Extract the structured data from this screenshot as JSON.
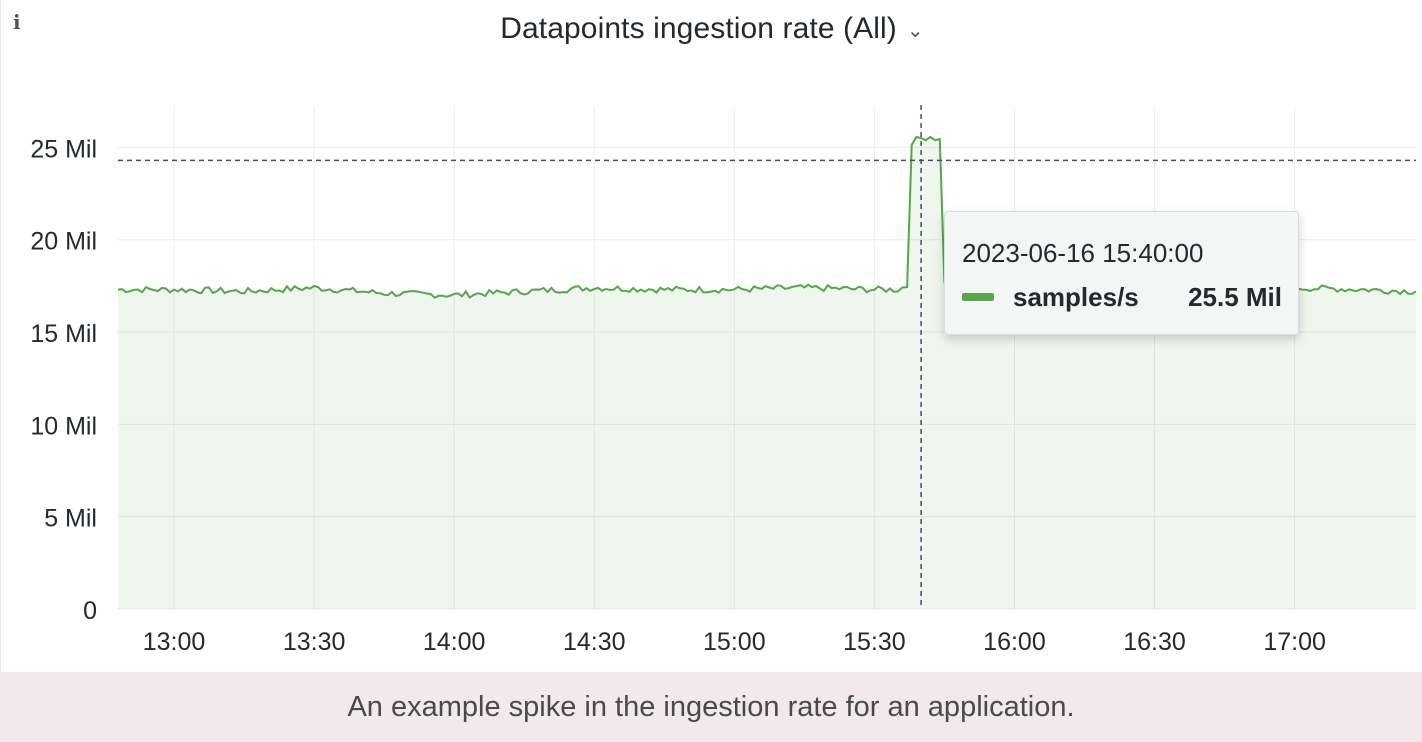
{
  "panel": {
    "title": "Datapoints ingestion rate (All)",
    "info_icon": "info-icon",
    "dropdown_icon": "chevron-down-icon"
  },
  "chart_data": {
    "type": "area",
    "title": "Datapoints ingestion rate (All)",
    "xlabel": "",
    "ylabel": "",
    "x_ticks": [
      "13:00",
      "13:30",
      "14:00",
      "14:30",
      "15:00",
      "15:30",
      "16:00",
      "16:30",
      "17:00"
    ],
    "y_ticks": [
      "0",
      "5 Mil",
      "10 Mil",
      "15 Mil",
      "20 Mil",
      "25 Mil"
    ],
    "ylim": [
      0,
      28
    ],
    "y_tick_values": [
      0,
      5,
      10,
      15,
      20,
      25
    ],
    "xlim": [
      "12:48",
      "17:26"
    ],
    "grid": true,
    "color": "#56a64b",
    "series": [
      {
        "name": "samples/s",
        "unit": "Mil",
        "x": [
          "12:48",
          "13:00",
          "13:15",
          "13:30",
          "13:45",
          "14:00",
          "14:15",
          "14:30",
          "14:45",
          "15:00",
          "15:15",
          "15:30",
          "15:35",
          "15:37",
          "15:38",
          "15:40",
          "15:42",
          "15:44",
          "15:45",
          "15:47",
          "15:50",
          "16:00",
          "16:15",
          "16:30",
          "16:45",
          "17:00",
          "17:15",
          "17:26"
        ],
        "values": [
          17.3,
          17.3,
          17.2,
          17.4,
          17.1,
          17.0,
          17.2,
          17.4,
          17.3,
          17.3,
          17.4,
          17.3,
          17.3,
          17.5,
          25.3,
          25.5,
          25.6,
          25.4,
          17.8,
          17.5,
          17.4,
          17.3,
          17.4,
          17.3,
          17.5,
          17.4,
          17.3,
          17.2
        ]
      }
    ],
    "crosshair_x": "15:40",
    "crosshair_y": 24.3
  },
  "tooltip": {
    "time": "2023-06-16 15:40:00",
    "series_name": "samples/s",
    "value": "25.5 Mil",
    "color": "#56a64b"
  },
  "caption": "An example spike in the ingestion rate for an application."
}
